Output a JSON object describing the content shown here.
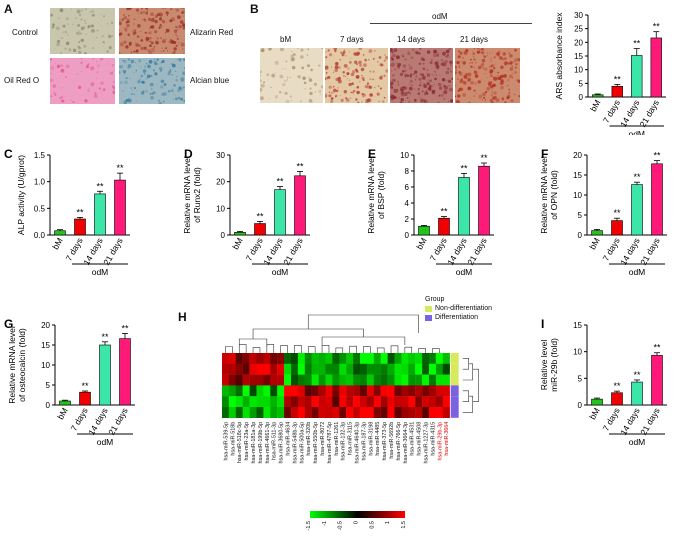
{
  "panels": {
    "A": {
      "label": "A",
      "images": [
        {
          "caption": "Control",
          "bg": "#c9c6ae"
        },
        {
          "caption": "Alizarin Red",
          "bg": "#c98a70"
        },
        {
          "caption": "Oil Red O",
          "bg": "#ef9ec3"
        },
        {
          "caption": "Alcian blue",
          "bg": "#9eb8c2"
        }
      ]
    },
    "B": {
      "label": "B",
      "group_label": "odM",
      "images": [
        {
          "caption": "bM",
          "bg": "#e8dcc4"
        },
        {
          "caption": "7 days",
          "bg": "#e4c9a6"
        },
        {
          "caption": "14 days",
          "bg": "#b87a72"
        },
        {
          "caption": "21 days",
          "bg": "#cc8a6e"
        }
      ]
    },
    "H": {
      "label": "H",
      "legend_title": "Group",
      "legend_items": [
        {
          "label": "Non-differentiation",
          "color": "#d7ea5b"
        },
        {
          "label": "Differentiation",
          "color": "#7a63e0"
        }
      ],
      "color_scale": [
        "-1.5",
        "-1",
        "-0.5",
        "0",
        "0.5",
        "1",
        "1.5"
      ],
      "mirnas": [
        "hsa-miR-539-5p",
        "hsa-miR-518b",
        "hsa-miR-518c-5p",
        "hsa-miR-23a-5p",
        "hsa-miR-181a-3p",
        "hsa-miR-199b-5p",
        "hsa-miR-4661-3p",
        "hsa-miR-511-3p",
        "hsa-miR-3680-5p",
        "hsa-miR-4634",
        "hsa-miR-548b-3p",
        "hsa-miR-500a-5p",
        "hsa-miR-320b",
        "hsa-miR-550b-5p",
        "hsa-miR-8072",
        "hsa-miR-4787-5p",
        "hsa-miR-1261",
        "hsa-miR-132-3p",
        "hsa-miR-3115",
        "hsa-miR-4640-3p",
        "hsa-miR-187-3p",
        "hsa-miR-3198",
        "hsa-miR-4485",
        "hsa-miR-373-5p",
        "hsa-miR-5692b",
        "hsa-miR-766-5p",
        "hsa-miR-3664-3p",
        "hsa-miR-4531",
        "hsa-miR-4508",
        "hsa-miR-1227-3p",
        "hsa-miR-4315",
        "hsa-miR-29b-3p",
        "hsa-miR-3664"
      ],
      "red_label_indices": [
        31,
        32
      ]
    }
  },
  "chart_data": [
    {
      "panel": "B",
      "label": "",
      "type": "bar",
      "categories": [
        "bM",
        "7 days",
        "14 days",
        "21 days"
      ],
      "values": [
        0.8,
        3.9,
        15.2,
        21.6
      ],
      "errors": [
        0.3,
        0.7,
        2.5,
        2.3
      ],
      "colors": [
        "#21c31c",
        "#f00000",
        "#3be6a8",
        "#ff1a7a"
      ],
      "ylabel": "ARS absorbance index",
      "ylim": [
        0,
        30
      ],
      "yticks": [
        0,
        5,
        10,
        15,
        20,
        25,
        30
      ],
      "sig": [
        "",
        "**",
        "**",
        "**"
      ],
      "group_label": "odM"
    },
    {
      "panel": "C",
      "label": "C",
      "type": "bar",
      "categories": [
        "bM",
        "7 days",
        "14 days",
        "21 days"
      ],
      "values": [
        0.08,
        0.3,
        0.77,
        1.03
      ],
      "errors": [
        0.02,
        0.03,
        0.05,
        0.13
      ],
      "colors": [
        "#21c31c",
        "#f00000",
        "#3be6a8",
        "#ff1a7a"
      ],
      "ylabel": "ALP activity (U/gprot)",
      "ylim": [
        0,
        1.5
      ],
      "yticks": [
        0.0,
        0.5,
        1.0,
        1.5
      ],
      "sig": [
        "",
        "**",
        "**",
        "**"
      ],
      "group_label": "odM"
    },
    {
      "panel": "D",
      "label": "D",
      "type": "bar",
      "categories": [
        "bM",
        "7 days",
        "14 days",
        "21 days"
      ],
      "values": [
        1.0,
        4.3,
        17.0,
        22.2
      ],
      "errors": [
        0.3,
        0.8,
        1.2,
        1.6
      ],
      "colors": [
        "#21c31c",
        "#f00000",
        "#3be6a8",
        "#ff1a7a"
      ],
      "ylabel": "Relative mRNA level\nof Runx2 (fold)",
      "ylim": [
        0,
        30
      ],
      "yticks": [
        0,
        10,
        20,
        30
      ],
      "sig": [
        "",
        "**",
        "**",
        "**"
      ],
      "group_label": "odM"
    },
    {
      "panel": "E",
      "label": "E",
      "type": "bar",
      "categories": [
        "bM",
        "7 days",
        "14 days",
        "21 days"
      ],
      "values": [
        1.1,
        2.1,
        7.2,
        8.6
      ],
      "errors": [
        0.1,
        0.2,
        0.5,
        0.4
      ],
      "colors": [
        "#21c31c",
        "#f00000",
        "#3be6a8",
        "#ff1a7a"
      ],
      "ylabel": "Relative mRNA level\nof BSP (fold)",
      "ylim": [
        0,
        10
      ],
      "yticks": [
        0,
        2,
        4,
        6,
        8,
        10
      ],
      "sig": [
        "",
        "**",
        "**",
        "**"
      ],
      "group_label": "odM"
    },
    {
      "panel": "F",
      "label": "F",
      "type": "bar",
      "categories": [
        "bM",
        "7 days",
        "14 days",
        "21 days"
      ],
      "values": [
        1.1,
        3.6,
        12.6,
        17.8
      ],
      "errors": [
        0.3,
        0.6,
        0.6,
        0.8
      ],
      "colors": [
        "#21c31c",
        "#f00000",
        "#3be6a8",
        "#ff1a7a"
      ],
      "ylabel": "Relative mRNA level\nof OPN (fold)",
      "ylim": [
        0,
        20
      ],
      "yticks": [
        0,
        5,
        10,
        15,
        20
      ],
      "sig": [
        "",
        "**",
        "**",
        "**"
      ],
      "group_label": "odM"
    },
    {
      "panel": "G",
      "label": "G",
      "type": "bar",
      "categories": [
        "bM",
        "7 days",
        "14 days",
        "21 days"
      ],
      "values": [
        1.0,
        3.2,
        15.0,
        16.6
      ],
      "errors": [
        0.2,
        0.3,
        0.8,
        1.3
      ],
      "colors": [
        "#21c31c",
        "#f00000",
        "#3be6a8",
        "#ff1a7a"
      ],
      "ylabel": "Relative mRNA level\nof osteocalcin (fold)",
      "ylim": [
        0,
        20
      ],
      "yticks": [
        0,
        5,
        10,
        15,
        20
      ],
      "sig": [
        "",
        "**",
        "**",
        "**"
      ],
      "group_label": "odM"
    },
    {
      "panel": "I",
      "label": "I",
      "type": "bar",
      "categories": [
        "bM",
        "7 days",
        "14 days",
        "21 days"
      ],
      "values": [
        1.1,
        2.3,
        4.3,
        9.3
      ],
      "errors": [
        0.2,
        0.3,
        0.4,
        0.5
      ],
      "colors": [
        "#21c31c",
        "#f00000",
        "#3be6a8",
        "#ff1a7a"
      ],
      "ylabel": "Relative level\nmiR-29b (fold)",
      "ylim": [
        0,
        15
      ],
      "yticks": [
        0,
        5,
        10,
        15
      ],
      "sig": [
        "",
        "**",
        "**",
        "**"
      ],
      "group_label": "odM"
    }
  ]
}
